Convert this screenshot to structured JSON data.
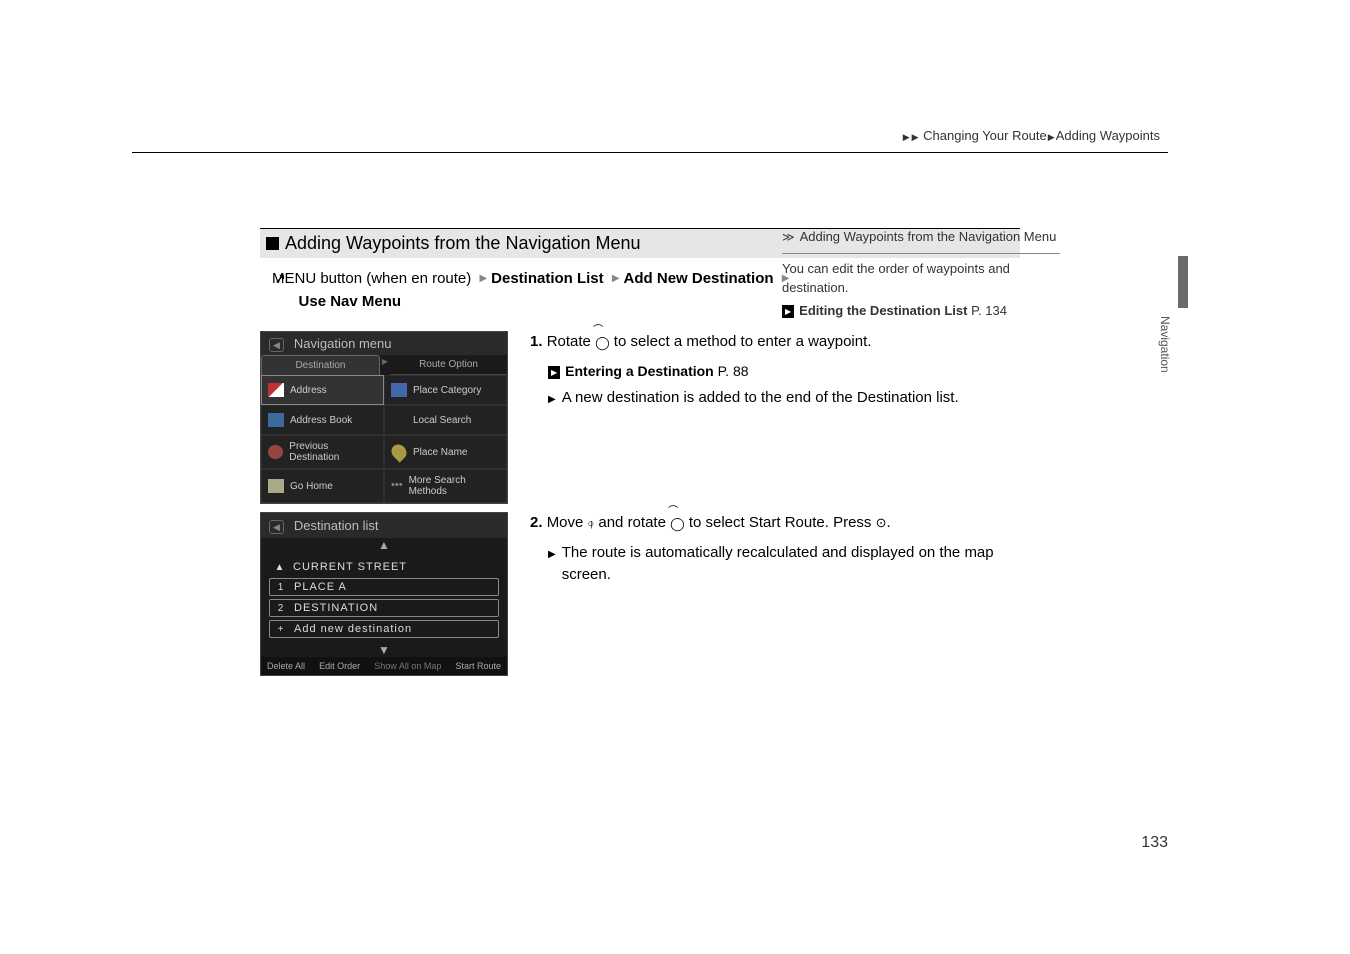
{
  "breadcrumb": {
    "a": "Changing Your Route",
    "b": "Adding Waypoints"
  },
  "page_number": "133",
  "side_label": "Navigation",
  "section_title": "Adding Waypoints from the Navigation Menu",
  "cmd": {
    "prefix": "MENU button (when en route)",
    "b1": "Destination List",
    "b2": "Add New Destination",
    "b3": "Use Nav Menu"
  },
  "shot1": {
    "title": "Navigation menu",
    "tab_a": "Destination",
    "tab_b": "Route Option",
    "cells": [
      {
        "icon": "flag",
        "label": "Address",
        "sel": true
      },
      {
        "icon": "card",
        "label": "Place Category"
      },
      {
        "icon": "book",
        "label": "Address Book"
      },
      {
        "icon": "",
        "label": "Local Search"
      },
      {
        "icon": "clock",
        "label": "Previous Destination"
      },
      {
        "icon": "pin",
        "label": "Place Name"
      },
      {
        "icon": "home",
        "label": "Go Home"
      },
      {
        "icon": "dots",
        "label": "More Search Methods"
      }
    ]
  },
  "shot2": {
    "title": "Destination list",
    "rows": [
      {
        "m": "▲",
        "t": "CURRENT STREET",
        "boxed": false
      },
      {
        "m": "1",
        "t": "PLACE A",
        "boxed": true
      },
      {
        "m": "2",
        "t": "DESTINATION",
        "boxed": true
      },
      {
        "m": "+",
        "t": "Add new destination",
        "boxed": true
      }
    ],
    "footer": [
      "Delete All",
      "Edit Order",
      "Show All on Map",
      "Start Route"
    ]
  },
  "step1": {
    "num": "1.",
    "text_a": "Rotate ",
    "text_b": " to select a method to enter a waypoint.",
    "xref": "Entering a Destination",
    "xref_page": "P. 88",
    "sub": "A new destination is added to the end of the Destination list."
  },
  "step2": {
    "num": "2.",
    "text_a": "Move ",
    "text_b": " and rotate ",
    "text_c": " to select ",
    "start_route": "Start Route",
    "text_d": ". Press ",
    "text_e": ".",
    "sub": "The route is automatically recalculated and displayed on the map screen."
  },
  "tip": {
    "title": "Adding Waypoints from the Navigation Menu",
    "body": "You can edit the order of waypoints and destination.",
    "xref": "Editing the Destination List",
    "xref_page": "P. 134"
  }
}
